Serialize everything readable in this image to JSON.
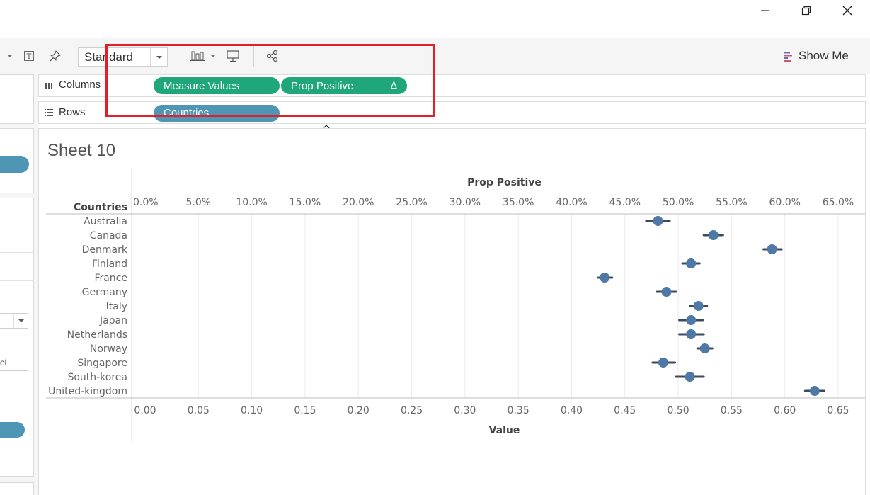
{
  "window": {
    "controls": [
      "minimize-icon",
      "restore-icon",
      "close-icon"
    ]
  },
  "toolbar": {
    "fit_value": "Standard",
    "show_me_label": "Show Me",
    "icons": [
      "dropdown-arrow-icon",
      "text-label-icon",
      "pin-icon",
      "chevron-down-icon",
      "bar-chart-icon",
      "presentation-icon",
      "share-icon",
      "show-me-icon"
    ]
  },
  "shelves": {
    "columns": {
      "label": "Columns",
      "pills": [
        {
          "text": "Measure Values",
          "color": "#1fa67a"
        },
        {
          "text": "Prop Positive",
          "delta": "Δ",
          "color": "#1fa67a"
        }
      ]
    },
    "rows": {
      "label": "Rows",
      "pills": [
        {
          "text": "Countries",
          "color": "#4e96b4"
        }
      ]
    }
  },
  "annotation": {
    "color": "#e2202a"
  },
  "left_panel": {
    "partial_text": "el"
  },
  "sheet": {
    "title": "Sheet 10"
  },
  "chart_data": {
    "type": "scatter",
    "row_header": "Countries",
    "top_axis": {
      "title": "Prop Positive",
      "ticks": [
        "0.0%",
        "5.0%",
        "10.0%",
        "15.0%",
        "20.0%",
        "25.0%",
        "30.0%",
        "35.0%",
        "40.0%",
        "45.0%",
        "50.0%",
        "55.0%",
        "60.0%",
        "65.0%"
      ]
    },
    "bottom_axis": {
      "title": "Value",
      "ticks": [
        "0.00",
        "0.05",
        "0.10",
        "0.15",
        "0.20",
        "0.25",
        "0.30",
        "0.35",
        "0.40",
        "0.45",
        "0.50",
        "0.55",
        "0.60",
        "0.65"
      ]
    },
    "xlim": [
      0,
      0.66
    ],
    "grid": true,
    "point_color": "#4e79a7",
    "interval_color": "#3b4a5c",
    "categories": [
      "Australia",
      "Canada",
      "Denmark",
      "Finland",
      "France",
      "Germany",
      "Italy",
      "Japan",
      "Netherlands",
      "Norway",
      "Singapore",
      "South-korea",
      "United-kingdom"
    ],
    "values": [
      0.481,
      0.533,
      0.588,
      0.512,
      0.431,
      0.489,
      0.519,
      0.512,
      0.512,
      0.525,
      0.486,
      0.511,
      0.628
    ],
    "lower": [
      0.47,
      0.524,
      0.58,
      0.504,
      0.425,
      0.48,
      0.511,
      0.501,
      0.501,
      0.518,
      0.476,
      0.498,
      0.619
    ],
    "upper": [
      0.492,
      0.542,
      0.597,
      0.52,
      0.438,
      0.498,
      0.527,
      0.523,
      0.524,
      0.532,
      0.497,
      0.524,
      0.637
    ]
  }
}
